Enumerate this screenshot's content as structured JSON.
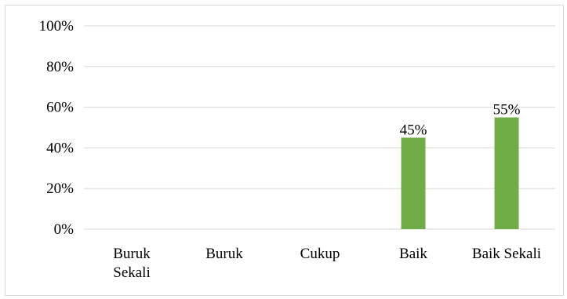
{
  "chart_data": {
    "type": "bar",
    "categories": [
      "Buruk Sekali",
      "Buruk",
      "Cukup",
      "Baik",
      "Baik Sekali"
    ],
    "category_lines": [
      [
        "Buruk",
        "Sekali"
      ],
      [
        "Buruk"
      ],
      [
        "Cukup"
      ],
      [
        "Baik"
      ],
      [
        "Baik Sekali"
      ]
    ],
    "values": [
      0,
      0,
      0,
      45,
      55
    ],
    "data_labels": [
      "",
      "",
      "",
      "45%",
      "55%"
    ],
    "y_ticks": [
      "0%",
      "20%",
      "40%",
      "60%",
      "80%",
      "100%"
    ],
    "y_tick_values": [
      0,
      20,
      40,
      60,
      80,
      100
    ],
    "ylim": [
      0,
      100
    ],
    "grid": true,
    "legend": "none",
    "bar_color": "#70ad47",
    "title": "",
    "xlabel": "",
    "ylabel": ""
  }
}
